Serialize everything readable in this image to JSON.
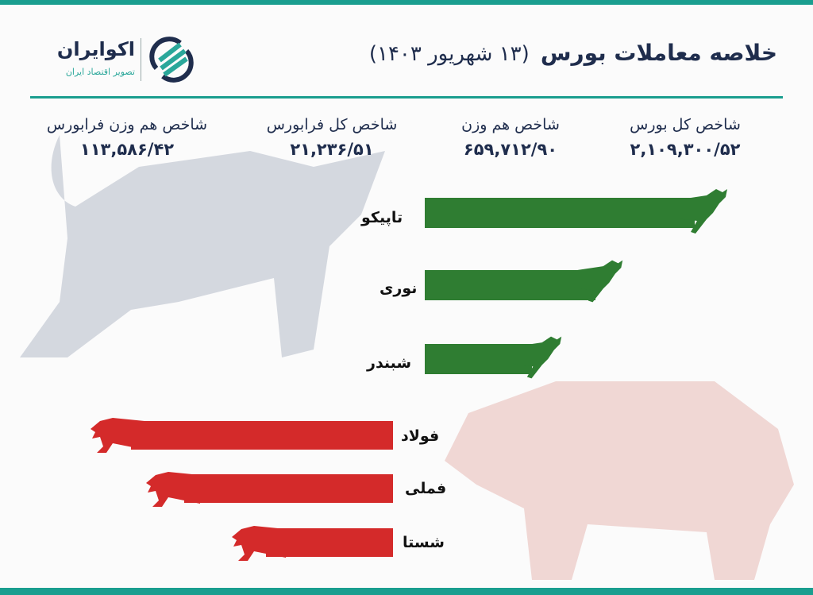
{
  "colors": {
    "accent": "#1a9e8f",
    "title": "#1f2d4d",
    "gain": "#2f7d32",
    "loss": "#d42a2a"
  },
  "header": {
    "title": "خلاصه معاملات بورس",
    "date": "(۱۳ شهریور ۱۴۰۳)"
  },
  "logo": {
    "name": "اکوایران",
    "tagline": "تصویر اقتصاد ایران"
  },
  "indices": [
    {
      "label": "شاخص کل بورس",
      "value": "۲,۱۰۹,۳۰۰/۵۲"
    },
    {
      "label": "شاخص هم وزن",
      "value": "۶۵۹,۷۱۲/۹۰"
    },
    {
      "label": "شاخص کل فرابورس",
      "value": "۲۱,۲۳۶/۵۱"
    },
    {
      "label": "شاخص هم وزن فرابورس",
      "value": "۱۱۳,۵۸۶/۴۲"
    }
  ],
  "gainers": [
    {
      "name": "تاپیکو",
      "icon": "bull-icon"
    },
    {
      "name": "نوری",
      "icon": "bull-icon"
    },
    {
      "name": "شبندر",
      "icon": "bull-icon"
    }
  ],
  "losers": [
    {
      "name": "فولاد",
      "icon": "bear-icon"
    },
    {
      "name": "فملی",
      "icon": "bear-icon"
    },
    {
      "name": "شستا",
      "icon": "bear-icon"
    }
  ]
}
